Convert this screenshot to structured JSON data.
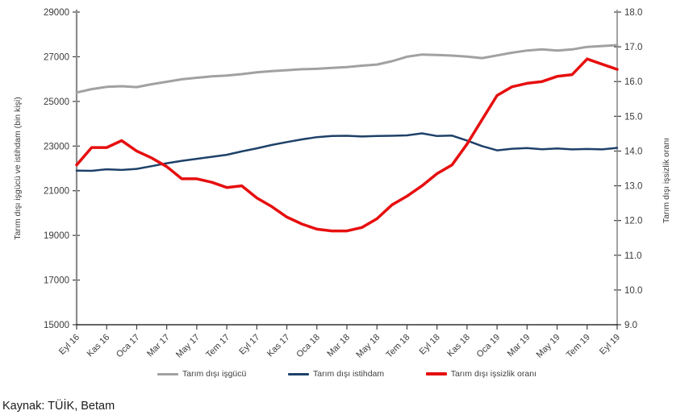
{
  "source_note": "Kaynak: TÜİK, Betam",
  "colors": {
    "gray": "#a1a1a1",
    "blue": "#1e4169",
    "red": "#e60f0f",
    "axis_line": "#8c8c8c",
    "axis_dark": "#404040",
    "tick_text": "#3b3b3b"
  },
  "chart_data": {
    "type": "line",
    "categories": [
      "Eyl 16",
      "Eki 16",
      "Kas 16",
      "Ara 16",
      "Oca 17",
      "Şub 17",
      "Mar 17",
      "Nis 17",
      "May 17",
      "Haz 17",
      "Tem 17",
      "Ağu 17",
      "Eyl 17",
      "Eki 17",
      "Kas 17",
      "Ara 17",
      "Oca 18",
      "Şub 18",
      "Mar 18",
      "Nis 18",
      "May 18",
      "Haz 18",
      "Tem 18",
      "Ağu 18",
      "Eyl 18",
      "Eki 18",
      "Kas 18",
      "Ara 18",
      "Oca 19",
      "Şub 19",
      "Mar 19",
      "Nis 19",
      "May 19",
      "Haz 19",
      "Tem 19",
      "Ağu 19",
      "Eyl 19"
    ],
    "x_tick_labels": [
      "Eyl 16",
      "Kas 16",
      "Oca 17",
      "Mar 17",
      "May 17",
      "Tem 17",
      "Eyl 17",
      "Kas 17",
      "Oca 18",
      "Mar 18",
      "May 18",
      "Tem 18",
      "Eyl 18",
      "Kas 18",
      "Oca 19",
      "Mar 19",
      "May 19",
      "Tem 19",
      "Eyl 19"
    ],
    "x_tick_every": 2,
    "left_axis": {
      "label": "Tarım dışı işgücü ve istihdam (bin kişi)",
      "min": 15000,
      "max": 29000,
      "step": 2000
    },
    "right_axis": {
      "label": "Tarım dışı işsizlik oranı",
      "min": 9.0,
      "max": 18.0,
      "step": 1.0
    },
    "legend_position": "bottom",
    "grid": false,
    "series": [
      {
        "name": "Tarım dışı işgücü",
        "axis": "left",
        "color_key": "gray",
        "width": 3,
        "values": [
          25400,
          25550,
          25650,
          25680,
          25640,
          25770,
          25880,
          25990,
          26060,
          26120,
          26160,
          26220,
          26300,
          26360,
          26400,
          26440,
          26460,
          26500,
          26540,
          26600,
          26650,
          26800,
          27000,
          27100,
          27080,
          27050,
          27010,
          26940,
          27060,
          27180,
          27280,
          27330,
          27280,
          27330,
          27440,
          27480,
          27520
        ]
      },
      {
        "name": "Tarım dışı istihdam",
        "axis": "left",
        "color_key": "blue",
        "width": 2.5,
        "values": [
          21900,
          21890,
          21960,
          21930,
          21980,
          22100,
          22230,
          22340,
          22430,
          22520,
          22610,
          22760,
          22900,
          23050,
          23180,
          23300,
          23400,
          23450,
          23460,
          23430,
          23450,
          23460,
          23480,
          23570,
          23450,
          23470,
          23250,
          23000,
          22810,
          22880,
          22910,
          22860,
          22890,
          22850,
          22870,
          22850,
          22920
        ]
      },
      {
        "name": "Tarım dışı işsizlik oranı",
        "axis": "right",
        "color_key": "red",
        "width": 3.5,
        "values": [
          13.6,
          14.1,
          14.1,
          14.3,
          14.0,
          13.8,
          13.55,
          13.2,
          13.2,
          13.1,
          12.95,
          13.0,
          12.65,
          12.4,
          12.1,
          11.9,
          11.75,
          11.7,
          11.7,
          11.8,
          12.05,
          12.45,
          12.7,
          13.0,
          13.35,
          13.6,
          14.2,
          14.9,
          15.6,
          15.85,
          15.95,
          16.0,
          16.15,
          16.2,
          16.65,
          16.5,
          16.35
        ]
      }
    ]
  }
}
